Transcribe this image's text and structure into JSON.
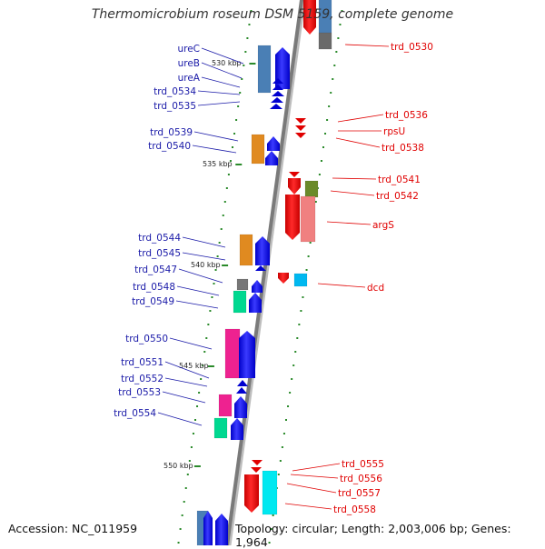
{
  "title": "Thermomicrobium roseum DSM 5159, complete genome",
  "accession": "Accession: NC_011959",
  "topology": "Topology: circular; Length: 2,003,006 bp; Genes: 1,964",
  "colors": {
    "backbone": "#7a7a7a",
    "forward_label": "#1a1aa8",
    "reverse_label": "#e00000",
    "tick": "#2a8a2a"
  },
  "ticks": [
    "530 kbp",
    "535 kbp",
    "540 kbp",
    "545 kbp",
    "550 kbp"
  ],
  "left_labels": [
    "ureC",
    "ureB",
    "ureA",
    "trd_0534",
    "trd_0535",
    "trd_0539",
    "trd_0540",
    "trd_0544",
    "trd_0545",
    "trd_0547",
    "trd_0548",
    "trd_0549",
    "trd_0550",
    "trd_0551",
    "trd_0552",
    "trd_0553",
    "trd_0554"
  ],
  "right_labels": [
    "trd_0530",
    "trd_0536",
    "rpsU",
    "trd_0538",
    "trd_0541",
    "trd_0542",
    "argS",
    "dcd",
    "trd_0555",
    "trd_0556",
    "trd_0557",
    "trd_0558"
  ]
}
